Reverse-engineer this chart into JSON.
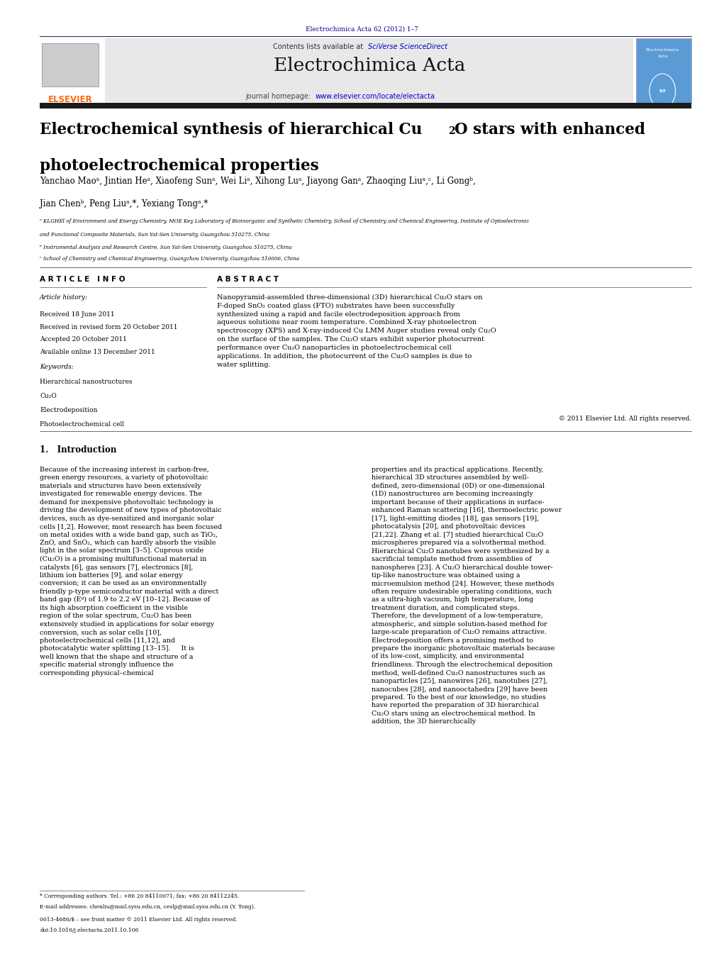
{
  "page_width": 10.21,
  "page_height": 13.51,
  "background_color": "#ffffff",
  "header_text": "Electrochimica Acta 62 (2012) 1–7",
  "header_color": "#00008B",
  "journal_header_bg": "#e8e8e8",
  "contents_text": "Contents lists available at ",
  "sciverse_text": "SciVerse ScienceDirect",
  "sciverse_color": "#0000CD",
  "journal_title": "Electrochimica Acta",
  "journal_homepage_prefix": "journal homepage: ",
  "journal_url": "www.elsevier.com/locate/electacta",
  "journal_url_color": "#0000CD",
  "elsevier_color": "#FF6600",
  "paper_title_line1": "Electrochemical synthesis of hierarchical Cu",
  "paper_title_sub": "2",
  "paper_title_line1b": "O stars with enhanced",
  "paper_title_line2": "photoelectrochemical properties",
  "authors": "Yanchao Maoᵃ, Jintian Heᵃ, Xiaofeng Sunᵃ, Wei Liᵃ, Xihong Luᵃ, Jiayong Ganᵃ, Zhaoqing Liuᵃ,ᶜ, Li Gongᵇ,",
  "authors2": "Jian Chenᵇ, Peng Liuᵃ,*, Yexiang Tongᵃ,*",
  "affil_a": "ᵃ KLGHEl of Environment and Energy Chemistry, MOE Key Laboratory of Bioinorganic and Synthetic Chemistry, School of Chemistry and Chemical Engineering, Institute of Optoelectronic",
  "affil_a2": "and Functional Composite Materials, Sun Yat-Sen University, Guangzhou 510275, China",
  "affil_b": "ᵇ Instrumental Analysis and Research Centre, Sun Yat-Sen University, Guangzhou 510275, China",
  "affil_c": "ᶜ School of Chemistry and Chemical Engineering, Guangzhou University, Guangzhou 510006, China",
  "article_info_title": "A R T I C L E   I N F O",
  "abstract_title": "A B S T R A C T",
  "article_history": "Article history:",
  "received": "Received 18 June 2011",
  "revised": "Received in revised form 20 October 2011",
  "accepted": "Accepted 20 October 2011",
  "available": "Available online 13 December 2011",
  "keywords_title": "Keywords:",
  "keywords_list": [
    "Hierarchical nanostructures",
    "Cu₂O",
    "Electrodeposition",
    "Photoelectrochemical cell"
  ],
  "abstract_text": "Nanopyramid-assembled three-dimensional (3D) hierarchical Cu₂O stars on F-doped SnO₂ coated glass (FTO) substrates have been successfully synthesized using a rapid and facile electrodeposition approach from aqueous solutions near room temperature. Combined X-ray photoelectron spectroscopy (XPS) and X-ray-induced Cu LMM Auger studies reveal only Cu₂O on the surface of the samples. The Cu₂O stars exhibit superior photocurrent performance over Cu₂O nanoparticles in photoelectrochemical cell applications. In addition, the photocurrent of the Cu₂O samples is due to water splitting.",
  "copyright": "© 2011 Elsevier Ltd. All rights reserved.",
  "intro_title": "1.   Introduction",
  "intro_text1": "Because of the increasing interest in carbon-free, green energy resources, a variety of photovoltaic materials and structures have been extensively investigated for renewable energy devices. The demand for inexpensive photovoltaic technology is driving the development of new types of photovoltaic devices, such as dye-sensitized and inorganic solar cells [1,2]. However, most research has been focused on metal oxides with a wide band gap, such as TiO₂, ZnO, and SnO₂, which can hardly absorb the visible light in the solar spectrum [3–5]. Cuprous oxide (Cu₂O) is a promising multifunctional material in catalysts [6], gas sensors [7], electronics [8], lithium ion batteries [9], and solar energy conversion; it can be used as an environmentally friendly p-type semiconductor material with a direct band gap (Eᵍ) of 1.9 to 2.2 eV [10–12]. Because of its high absorption coefficient in the visible region of the solar spectrum, Cu₂O has been extensively studied in applications for solar energy conversion, such as solar cells [10], photoelectrochemical cells [11,12], and photocatalytic water splitting [13–15].\n    It is well known that the shape and structure of a specific material strongly influence the corresponding physical–chemical",
  "intro_text2": "properties and its practical applications. Recently, hierarchical 3D structures assembled by well-defined, zero-dimensional (0D) or one-dimensional (1D) nanostructures are becoming increasingly important because of their applications in surface-enhanced Raman scattering [16], thermoelectric power [17], light-emitting diodes [18], gas sensors [19], photocatalysis [20], and photovoltaic devices [21,22]. Zhang et al. [7] studied hierarchical Cu₂O microspheres prepared via a solvothermal method. Hierarchical Cu₂O nanotubes were synthesized by a sacrificial template method from assemblies of nanospheres [23]. A Cu₂O hierarchical double tower-tip-like nanostructure was obtained using a microemulsion method [24]. However, these methods often require undesirable operating conditions, such as a ultra-high vacuum, high temperature, long treatment duration, and complicated steps. Therefore, the development of a low-temperature, atmospheric, and simple solution-based method for large-scale preparation of Cu₂O remains attractive. Electrodeposition offers a promising method to prepare the inorganic photovoltaic materials because of its low-cost, simplicity, and environmental friendliness. Through the electrochemical deposition method, well-defined Cu₂O nanostructures such as nanoparticles [25], nanowires [26], nanotubes [27], nanocubes [28], and nanooctahedra [29] have been prepared. To the best of our knowledge, no studies have reported the preparation of 3D hierarchical Cu₂O stars using an electrochemical method. In addition, the 3D hierarchically",
  "footer_note": "* Corresponding authors. Tel.: +86 20 84110071; fax: +86 20 84112245.",
  "footer_email": "E-mail addresses: chenliu@mail.sysu.edu.cn, ceslp@mail.sysu.edu.cn (Y. Tong).",
  "footer_doi": "0013-4686/$ – see front matter © 2011 Elsevier Ltd. All rights reserved.",
  "footer_doi2": "doi:10.1016/j.electacta.2011.10.106",
  "divider_color": "#000000",
  "thick_bar_color": "#1a1a1a"
}
